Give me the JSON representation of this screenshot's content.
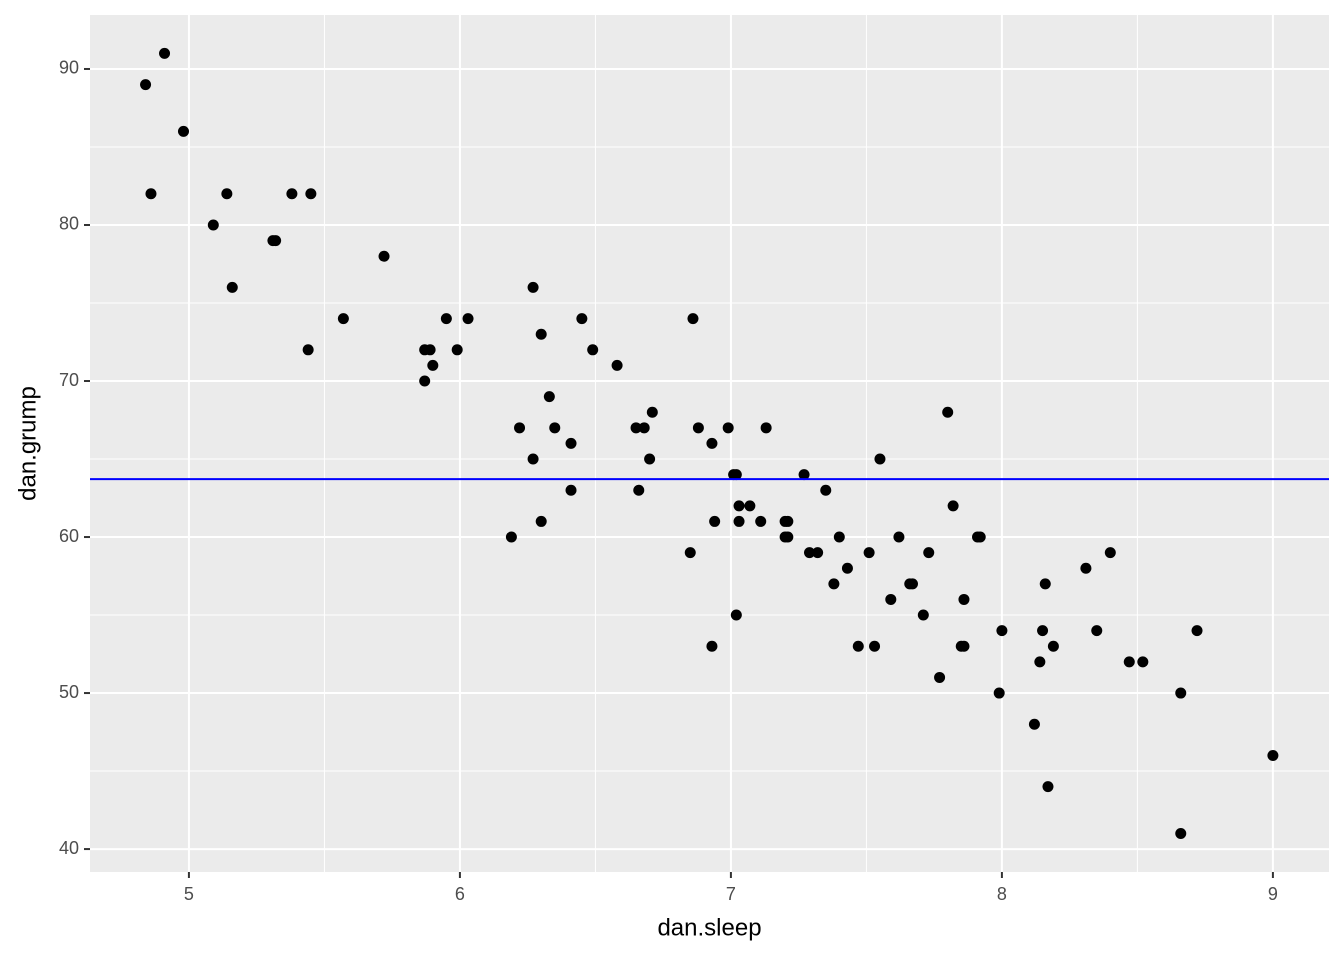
{
  "chart_data": {
    "type": "scatter",
    "x_label": "dan.sleep",
    "y_label": "dan.grump",
    "x": [
      4.84,
      4.91,
      4.86,
      4.98,
      5.09,
      5.14,
      5.16,
      5.31,
      5.32,
      5.38,
      5.45,
      5.44,
      5.57,
      5.72,
      5.87,
      5.89,
      5.87,
      5.9,
      5.95,
      5.99,
      6.03,
      6.19,
      6.22,
      6.27,
      6.27,
      6.3,
      6.3,
      6.33,
      6.35,
      6.41,
      6.41,
      6.45,
      6.49,
      6.58,
      6.65,
      6.68,
      6.66,
      6.7,
      6.71,
      6.85,
      6.86,
      6.88,
      6.93,
      6.93,
      6.94,
      6.99,
      7.01,
      7.02,
      7.03,
      7.03,
      7.02,
      7.07,
      7.11,
      7.13,
      7.2,
      7.2,
      7.21,
      7.21,
      7.27,
      7.29,
      7.32,
      7.35,
      7.38,
      7.4,
      7.43,
      7.47,
      7.51,
      7.53,
      7.55,
      7.59,
      7.62,
      7.66,
      7.67,
      7.71,
      7.73,
      7.77,
      7.8,
      7.82,
      7.85,
      7.86,
      7.86,
      7.91,
      7.92,
      7.99,
      8.0,
      8.12,
      8.14,
      8.15,
      8.16,
      8.17,
      8.19,
      8.31,
      8.35,
      8.4,
      8.47,
      8.52,
      8.66,
      8.66,
      8.72,
      9.0
    ],
    "series": [
      {
        "name": "dan.grump",
        "color": "#000000",
        "values": [
          89,
          91,
          82,
          86,
          80,
          82,
          76,
          79,
          79,
          82,
          82,
          72,
          74,
          78,
          72,
          72,
          70,
          71,
          74,
          72,
          74,
          60,
          67,
          76,
          65,
          73,
          61,
          69,
          67,
          66,
          63,
          74,
          72,
          71,
          67,
          67,
          63,
          65,
          68,
          59,
          74,
          67,
          66,
          53,
          61,
          67,
          64,
          64,
          62,
          61,
          55,
          62,
          61,
          67,
          60,
          61,
          61,
          60,
          64,
          59,
          59,
          63,
          57,
          60,
          58,
          53,
          59,
          53,
          65,
          56,
          60,
          57,
          57,
          55,
          59,
          51,
          68,
          62,
          53,
          53,
          56,
          60,
          60,
          50,
          54,
          48,
          52,
          54,
          57,
          44,
          53,
          58,
          54,
          59,
          52,
          52,
          50,
          41,
          54,
          46
        ]
      }
    ],
    "hline": {
      "value": 63.71,
      "color": "#0000ff"
    },
    "xlim": [
      4.635,
      9.207
    ],
    "ylim": [
      38.53,
      93.46
    ],
    "xticks": [
      5,
      6,
      7,
      8,
      9
    ],
    "yticks": [
      40,
      50,
      60,
      70,
      80,
      90
    ],
    "grid": true
  }
}
